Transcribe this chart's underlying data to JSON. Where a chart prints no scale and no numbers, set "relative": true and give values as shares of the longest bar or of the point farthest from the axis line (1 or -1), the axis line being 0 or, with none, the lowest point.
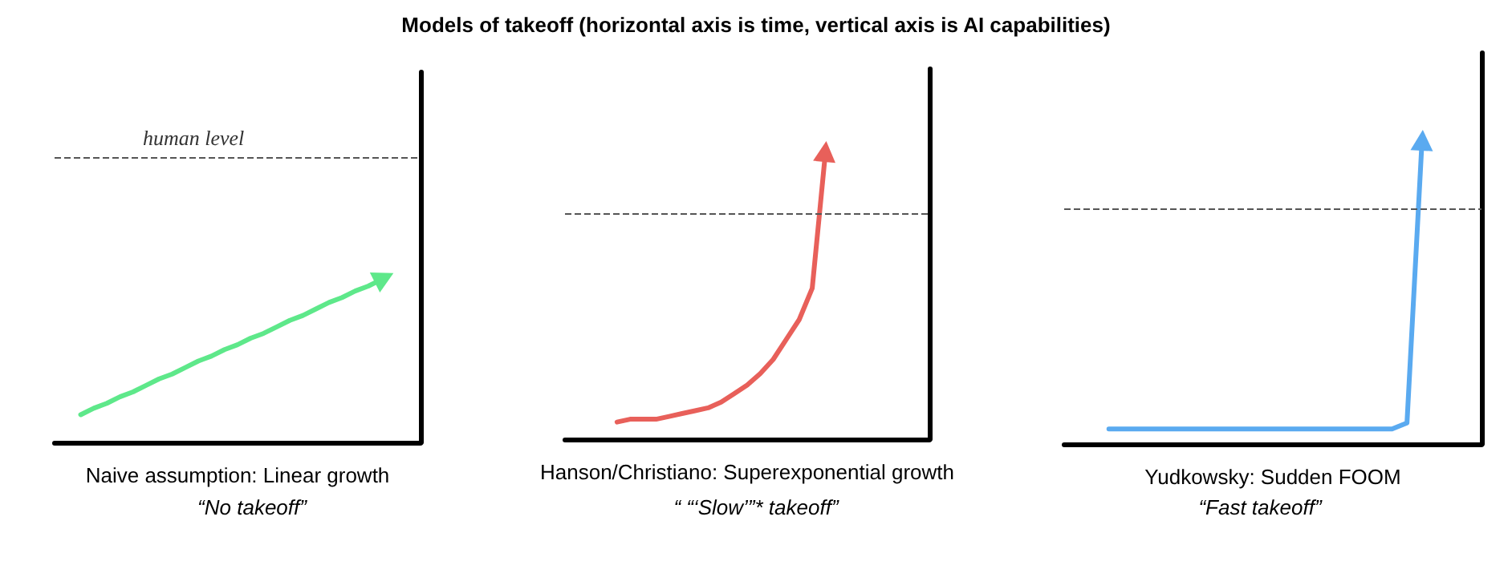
{
  "chart_data": [
    {
      "type": "line",
      "relative": true,
      "xlabel": "Naive assumption: Linear growth",
      "annotations": [
        "“No takeoff”"
      ],
      "categories": [
        null,
        null,
        null,
        null,
        null,
        null,
        null,
        null,
        null,
        null,
        null,
        null,
        null,
        null,
        null,
        null,
        null,
        null,
        null,
        null,
        null,
        null,
        null,
        null,
        null,
        null,
        null,
        null,
        null
      ],
      "series": [
        {
          "color": "#5ee88a",
          "values": [
            null,
            null,
            0.17,
            0.21,
            0.24,
            0.28,
            0.31,
            0.35,
            0.39,
            0.42,
            0.46,
            0.5,
            0.53,
            0.57,
            0.6,
            0.64,
            0.67,
            0.71,
            0.75,
            0.78,
            0.82,
            0.86,
            0.89,
            0.93,
            0.96,
            1.0,
            null,
            null,
            null
          ]
        }
      ],
      "ref_lines": [
        {
          "axis": "y",
          "value": 1.75,
          "label": "human level",
          "color": "#555555",
          "line_style": "dashed"
        }
      ]
    },
    {
      "type": "line",
      "title": "Models of takeoff (horizontal axis is time, vertical axis is AI capabilities)",
      "relative": true,
      "xlabel": "Hanson/Christiano: Superexponential growth",
      "annotations": [
        "“ “‘Slow’”* takeoff”"
      ],
      "categories": [
        null,
        null,
        null,
        null,
        null,
        null,
        null,
        null,
        null,
        null,
        null,
        null,
        null,
        null,
        null,
        null,
        null,
        null,
        null,
        null,
        null,
        null,
        null,
        null,
        null,
        null,
        null,
        null,
        null
      ],
      "series": [
        {
          "color": "#e8605a",
          "values": [
            null,
            null,
            null,
            null,
            0.06,
            0.07,
            0.07,
            0.07,
            0.08,
            0.09,
            0.1,
            0.11,
            0.13,
            0.16,
            0.19,
            0.23,
            0.28,
            0.35,
            0.42,
            0.53,
            1.0,
            null,
            null,
            null,
            null,
            null,
            null,
            null,
            null
          ]
        }
      ],
      "ref_lines": [
        {
          "axis": "y",
          "value": 0.79,
          "color": "#555555",
          "line_style": "dashed"
        }
      ]
    },
    {
      "type": "line",
      "relative": true,
      "xlabel": "Yudkowsky: Sudden FOOM",
      "annotations": [
        "“Fast takeoff”"
      ],
      "categories": [
        null,
        null,
        null,
        null,
        null,
        null,
        null,
        null,
        null,
        null,
        null,
        null,
        null,
        null,
        null,
        null,
        null,
        null,
        null,
        null,
        null,
        null,
        null,
        null,
        null,
        null,
        null,
        null,
        null
      ],
      "series": [
        {
          "color": "#5aaaf0",
          "values": [
            null,
            null,
            null,
            0.05,
            0.05,
            0.05,
            0.05,
            0.05,
            0.05,
            0.05,
            0.05,
            0.05,
            0.05,
            0.05,
            0.05,
            0.05,
            0.05,
            0.05,
            0.05,
            0.05,
            0.05,
            0.05,
            0.05,
            0.07,
            1.0,
            null,
            null,
            null,
            null
          ]
        }
      ],
      "ref_lines": [
        {
          "axis": "y",
          "value": 0.78,
          "color": "#555555",
          "line_style": "dashed"
        }
      ]
    }
  ]
}
